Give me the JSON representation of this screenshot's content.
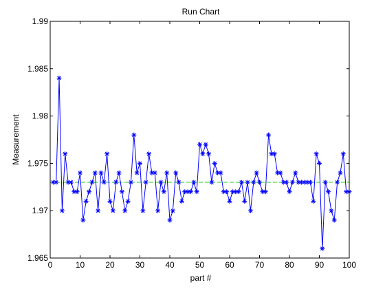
{
  "chart_data": {
    "type": "line",
    "title": "Run Chart",
    "xlabel": "part #",
    "ylabel": "Measurement",
    "xlim": [
      0,
      100
    ],
    "ylim": [
      1.965,
      1.99
    ],
    "xticks": [
      0,
      10,
      20,
      30,
      40,
      50,
      60,
      70,
      80,
      90,
      100
    ],
    "xtick_labels": [
      "0",
      "10",
      "20",
      "30",
      "40",
      "50",
      "60",
      "70",
      "80",
      "90",
      "100"
    ],
    "yticks": [
      1.965,
      1.97,
      1.975,
      1.98,
      1.985,
      1.99
    ],
    "ytick_labels": [
      "1.965",
      "1.97",
      "1.975",
      "1.98",
      "1.985",
      "1.99"
    ],
    "grid": false,
    "legend": "none",
    "series": [
      {
        "color": "#0000ff",
        "marker": "asterisk",
        "x": [
          1,
          2,
          3,
          4,
          5,
          6,
          7,
          8,
          9,
          10,
          11,
          12,
          13,
          14,
          15,
          16,
          17,
          18,
          19,
          20,
          21,
          22,
          23,
          24,
          25,
          26,
          27,
          28,
          29,
          30,
          31,
          32,
          33,
          34,
          35,
          36,
          37,
          38,
          39,
          40,
          41,
          42,
          43,
          44,
          45,
          46,
          47,
          48,
          49,
          50,
          51,
          52,
          53,
          54,
          55,
          56,
          57,
          58,
          59,
          60,
          61,
          62,
          63,
          64,
          65,
          66,
          67,
          68,
          69,
          70,
          71,
          72,
          73,
          74,
          75,
          76,
          77,
          78,
          79,
          80,
          81,
          82,
          83,
          84,
          85,
          86,
          87,
          88,
          89,
          90,
          91,
          92,
          93,
          94,
          95,
          96,
          97,
          98,
          99,
          100
        ],
        "y": [
          1.973,
          1.973,
          1.984,
          1.97,
          1.976,
          1.973,
          1.973,
          1.972,
          1.972,
          1.974,
          1.969,
          1.971,
          1.972,
          1.973,
          1.974,
          1.97,
          1.974,
          1.973,
          1.976,
          1.971,
          1.97,
          1.973,
          1.974,
          1.972,
          1.97,
          1.971,
          1.973,
          1.978,
          1.974,
          1.975,
          1.97,
          1.973,
          1.976,
          1.974,
          1.974,
          1.97,
          1.973,
          1.972,
          1.974,
          1.969,
          1.97,
          1.974,
          1.973,
          1.971,
          1.972,
          1.972,
          1.972,
          1.973,
          1.972,
          1.977,
          1.976,
          1.977,
          1.976,
          1.973,
          1.975,
          1.974,
          1.974,
          1.972,
          1.972,
          1.971,
          1.972,
          1.972,
          1.972,
          1.973,
          1.971,
          1.973,
          1.97,
          1.973,
          1.974,
          1.973,
          1.972,
          1.972,
          1.978,
          1.976,
          1.976,
          1.974,
          1.974,
          1.973,
          1.973,
          1.972,
          1.973,
          1.974,
          1.973,
          1.973,
          1.973,
          1.973,
          1.973,
          1.971,
          1.976,
          1.975,
          1.966,
          1.973,
          1.972,
          1.97,
          1.969,
          1.973,
          1.974,
          1.976,
          1.972,
          1.972
        ]
      }
    ],
    "reference_line": {
      "y": 1.973,
      "color": "#00cc00",
      "style": "dashed"
    }
  }
}
